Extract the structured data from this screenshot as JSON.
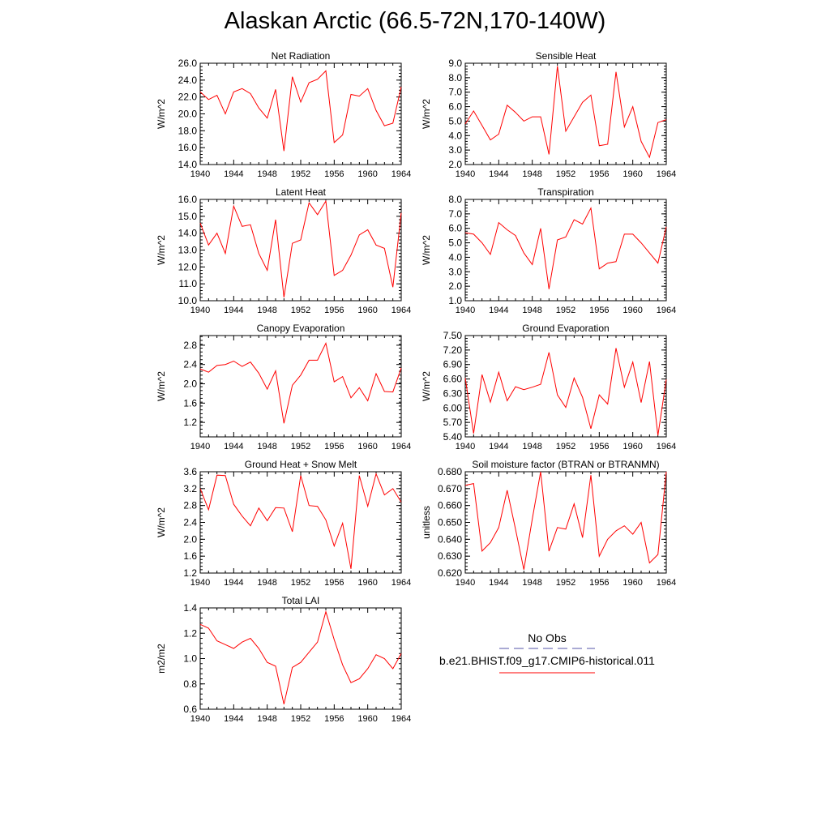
{
  "title": "Alaskan Arctic (66.5-72N,170-140W)",
  "legend": {
    "obs_label": "No Obs",
    "obs_color": "#5555aa",
    "model_label": "b.e21.BHIST.f09_g17.CMIP6-historical.011",
    "model_color": "#ff0000"
  },
  "chart_data": [
    {
      "type": "line",
      "title": "Net Radiation",
      "ylabel": "W/m^2",
      "xlim": [
        1940,
        1964
      ],
      "ylim": [
        14.0,
        26.0
      ],
      "xticks": [
        1940,
        1944,
        1948,
        1952,
        1956,
        1960,
        1964
      ],
      "yticks": [
        14.0,
        16.0,
        18.0,
        20.0,
        22.0,
        24.0,
        26.0
      ],
      "ytick_labels": [
        "14.0",
        "16.0",
        "18.0",
        "20.0",
        "22.0",
        "24.0",
        "26.0"
      ],
      "x": [
        1940,
        1941,
        1942,
        1943,
        1944,
        1945,
        1946,
        1947,
        1948,
        1949,
        1950,
        1951,
        1952,
        1953,
        1954,
        1955,
        1956,
        1957,
        1958,
        1959,
        1960,
        1961,
        1962,
        1963,
        1964
      ],
      "series": [
        {
          "values": [
            22.6,
            21.7,
            22.2,
            20.0,
            22.6,
            23.0,
            22.4,
            20.7,
            19.5,
            22.9,
            15.6,
            24.4,
            21.4,
            23.7,
            24.1,
            25.1,
            16.6,
            17.5,
            22.3,
            22.1,
            23.0,
            20.4,
            18.6,
            18.9,
            23.2
          ]
        }
      ]
    },
    {
      "type": "line",
      "title": "Sensible Heat",
      "ylabel": "W/m^2",
      "xlim": [
        1940,
        1964
      ],
      "ylim": [
        2.0,
        9.0
      ],
      "xticks": [
        1940,
        1944,
        1948,
        1952,
        1956,
        1960,
        1964
      ],
      "yticks": [
        2.0,
        3.0,
        4.0,
        5.0,
        6.0,
        7.0,
        8.0,
        9.0
      ],
      "ytick_labels": [
        "2.0",
        "3.0",
        "4.0",
        "5.0",
        "6.0",
        "7.0",
        "8.0",
        "9.0"
      ],
      "x": [
        1940,
        1941,
        1942,
        1943,
        1944,
        1945,
        1946,
        1947,
        1948,
        1949,
        1950,
        1951,
        1952,
        1953,
        1954,
        1955,
        1956,
        1957,
        1958,
        1959,
        1960,
        1961,
        1962,
        1963,
        1964
      ],
      "series": [
        {
          "values": [
            4.8,
            5.7,
            4.7,
            3.7,
            4.1,
            6.1,
            5.6,
            5.0,
            5.3,
            5.3,
            2.7,
            8.8,
            4.3,
            5.3,
            6.3,
            6.8,
            3.3,
            3.4,
            8.4,
            4.6,
            6.0,
            3.6,
            2.5,
            4.9,
            5.1
          ]
        }
      ]
    },
    {
      "type": "line",
      "title": "Latent Heat",
      "ylabel": "W/m^2",
      "xlim": [
        1940,
        1964
      ],
      "ylim": [
        10.0,
        16.0
      ],
      "xticks": [
        1940,
        1944,
        1948,
        1952,
        1956,
        1960,
        1964
      ],
      "yticks": [
        10.0,
        11.0,
        12.0,
        13.0,
        14.0,
        15.0,
        16.0
      ],
      "ytick_labels": [
        "10.0",
        "11.0",
        "12.0",
        "13.0",
        "14.0",
        "15.0",
        "16.0"
      ],
      "x": [
        1940,
        1941,
        1942,
        1943,
        1944,
        1945,
        1946,
        1947,
        1948,
        1949,
        1950,
        1951,
        1952,
        1953,
        1954,
        1955,
        1956,
        1957,
        1958,
        1959,
        1960,
        1961,
        1962,
        1963,
        1964
      ],
      "series": [
        {
          "values": [
            14.6,
            13.3,
            14.0,
            12.8,
            15.6,
            14.4,
            14.5,
            12.8,
            11.8,
            14.8,
            10.2,
            13.4,
            13.6,
            15.8,
            15.1,
            15.9,
            11.5,
            11.8,
            12.7,
            13.9,
            14.2,
            13.3,
            13.1,
            10.8,
            15.2
          ]
        }
      ]
    },
    {
      "type": "line",
      "title": "Transpiration",
      "ylabel": "W/m^2",
      "xlim": [
        1940,
        1964
      ],
      "ylim": [
        1.0,
        8.0
      ],
      "xticks": [
        1940,
        1944,
        1948,
        1952,
        1956,
        1960,
        1964
      ],
      "yticks": [
        1.0,
        2.0,
        3.0,
        4.0,
        5.0,
        6.0,
        7.0,
        8.0
      ],
      "ytick_labels": [
        "1.0",
        "2.0",
        "3.0",
        "4.0",
        "5.0",
        "6.0",
        "7.0",
        "8.0"
      ],
      "x": [
        1940,
        1941,
        1942,
        1943,
        1944,
        1945,
        1946,
        1947,
        1948,
        1949,
        1950,
        1951,
        1952,
        1953,
        1954,
        1955,
        1956,
        1957,
        1958,
        1959,
        1960,
        1961,
        1962,
        1963,
        1964
      ],
      "series": [
        {
          "values": [
            5.7,
            5.6,
            5.0,
            4.2,
            6.4,
            5.9,
            5.5,
            4.3,
            3.5,
            6.0,
            1.8,
            5.2,
            5.4,
            6.6,
            6.3,
            7.4,
            3.2,
            3.6,
            3.7,
            5.6,
            5.6,
            5.0,
            4.3,
            3.6,
            6.1
          ]
        }
      ]
    },
    {
      "type": "line",
      "title": "Canopy Evaporation",
      "ylabel": "W/m^2",
      "xlim": [
        1940,
        1964
      ],
      "ylim": [
        0.9,
        3.0
      ],
      "xticks": [
        1940,
        1944,
        1948,
        1952,
        1956,
        1960,
        1964
      ],
      "yticks": [
        1.2,
        1.6,
        2.0,
        2.4,
        2.8
      ],
      "ytick_labels": [
        "1.2",
        "1.6",
        "2.0",
        "2.4",
        "2.8"
      ],
      "x": [
        1940,
        1941,
        1942,
        1943,
        1944,
        1945,
        1946,
        1947,
        1948,
        1949,
        1950,
        1951,
        1952,
        1953,
        1954,
        1955,
        1956,
        1957,
        1958,
        1959,
        1960,
        1961,
        1962,
        1963,
        1964
      ],
      "series": [
        {
          "values": [
            2.31,
            2.24,
            2.38,
            2.4,
            2.47,
            2.36,
            2.45,
            2.22,
            1.89,
            2.27,
            1.18,
            1.97,
            2.18,
            2.49,
            2.49,
            2.84,
            2.04,
            2.15,
            1.71,
            1.92,
            1.65,
            2.21,
            1.84,
            1.83,
            2.33
          ]
        }
      ]
    },
    {
      "type": "line",
      "title": "Ground Evaporation",
      "ylabel": "W/m^2",
      "xlim": [
        1940,
        1964
      ],
      "ylim": [
        5.4,
        7.5
      ],
      "xticks": [
        1940,
        1944,
        1948,
        1952,
        1956,
        1960,
        1964
      ],
      "yticks": [
        5.4,
        5.7,
        6.0,
        6.3,
        6.6,
        6.9,
        7.2,
        7.5
      ],
      "ytick_labels": [
        "5.40",
        "5.70",
        "6.00",
        "6.30",
        "6.60",
        "6.90",
        "7.20",
        "7.50"
      ],
      "x": [
        1940,
        1941,
        1942,
        1943,
        1944,
        1945,
        1946,
        1947,
        1948,
        1949,
        1950,
        1951,
        1952,
        1953,
        1954,
        1955,
        1956,
        1957,
        1958,
        1959,
        1960,
        1961,
        1962,
        1963,
        1964
      ],
      "series": [
        {
          "values": [
            6.62,
            5.47,
            6.69,
            6.12,
            6.74,
            6.15,
            6.44,
            6.38,
            6.43,
            6.49,
            7.15,
            6.27,
            6.01,
            6.62,
            6.22,
            5.57,
            6.27,
            6.08,
            7.24,
            6.43,
            6.95,
            6.11,
            6.96,
            5.43,
            6.59
          ]
        }
      ]
    },
    {
      "type": "line",
      "title": "Ground Heat + Snow Melt",
      "ylabel": "W/m^2",
      "xlim": [
        1940,
        1964
      ],
      "ylim": [
        1.2,
        3.6
      ],
      "xticks": [
        1940,
        1944,
        1948,
        1952,
        1956,
        1960,
        1964
      ],
      "yticks": [
        1.2,
        1.6,
        2.0,
        2.4,
        2.8,
        3.2,
        3.6
      ],
      "ytick_labels": [
        "1.2",
        "1.6",
        "2.0",
        "2.4",
        "2.8",
        "3.2",
        "3.6"
      ],
      "x": [
        1940,
        1941,
        1942,
        1943,
        1944,
        1945,
        1946,
        1947,
        1948,
        1949,
        1950,
        1951,
        1952,
        1953,
        1954,
        1955,
        1956,
        1957,
        1958,
        1959,
        1960,
        1961,
        1962,
        1963,
        1964
      ],
      "series": [
        {
          "values": [
            3.2,
            2.7,
            3.52,
            3.51,
            2.83,
            2.55,
            2.32,
            2.74,
            2.44,
            2.75,
            2.74,
            2.18,
            3.51,
            2.8,
            2.78,
            2.46,
            1.84,
            2.38,
            1.3,
            3.51,
            2.78,
            3.55,
            3.05,
            3.2,
            2.88
          ]
        }
      ]
    },
    {
      "type": "line",
      "title": "Soil moisture factor (BTRAN or BTRANMN)",
      "ylabel": "unitless",
      "xlim": [
        1940,
        1964
      ],
      "ylim": [
        0.62,
        0.68
      ],
      "xticks": [
        1940,
        1944,
        1948,
        1952,
        1956,
        1960,
        1964
      ],
      "yticks": [
        0.62,
        0.63,
        0.64,
        0.65,
        0.66,
        0.67,
        0.68
      ],
      "ytick_labels": [
        "0.620",
        "0.630",
        "0.640",
        "0.650",
        "0.660",
        "0.670",
        "0.680"
      ],
      "x": [
        1940,
        1941,
        1942,
        1943,
        1944,
        1945,
        1946,
        1947,
        1948,
        1949,
        1950,
        1951,
        1952,
        1953,
        1954,
        1955,
        1956,
        1957,
        1958,
        1959,
        1960,
        1961,
        1962,
        1963,
        1964
      ],
      "series": [
        {
          "values": [
            0.672,
            0.673,
            0.633,
            0.638,
            0.647,
            0.669,
            0.646,
            0.622,
            0.652,
            0.68,
            0.633,
            0.647,
            0.646,
            0.661,
            0.641,
            0.678,
            0.63,
            0.64,
            0.645,
            0.648,
            0.643,
            0.65,
            0.626,
            0.631,
            0.68
          ]
        }
      ]
    },
    {
      "type": "line",
      "title": "Total LAI",
      "ylabel": "m2/m2",
      "xlim": [
        1940,
        1964
      ],
      "ylim": [
        0.6,
        1.4
      ],
      "xticks": [
        1940,
        1944,
        1948,
        1952,
        1956,
        1960,
        1964
      ],
      "yticks": [
        0.6,
        0.8,
        1.0,
        1.2,
        1.4
      ],
      "ytick_labels": [
        "0.6",
        "0.8",
        "1.0",
        "1.2",
        "1.4"
      ],
      "x": [
        1940,
        1941,
        1942,
        1943,
        1944,
        1945,
        1946,
        1947,
        1948,
        1949,
        1950,
        1951,
        1952,
        1953,
        1954,
        1955,
        1956,
        1957,
        1958,
        1959,
        1960,
        1961,
        1962,
        1963,
        1964
      ],
      "series": [
        {
          "values": [
            1.27,
            1.24,
            1.14,
            1.11,
            1.08,
            1.13,
            1.16,
            1.08,
            0.97,
            0.94,
            0.64,
            0.93,
            0.97,
            1.05,
            1.13,
            1.37,
            1.15,
            0.95,
            0.81,
            0.84,
            0.92,
            1.03,
            1.0,
            0.92,
            1.04
          ]
        }
      ]
    }
  ]
}
